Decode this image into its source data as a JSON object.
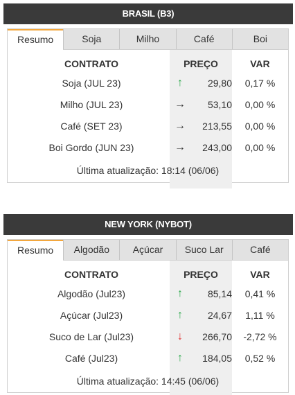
{
  "brasil": {
    "title": "BRASIL (B3)",
    "tabs": [
      "Resumo",
      "Soja",
      "Milho",
      "Café",
      "Boi"
    ],
    "headers": {
      "contract": "CONTRATO",
      "price": "PREÇO",
      "var": "VAR"
    },
    "rows": [
      {
        "contract": "Soja (JUL 23)",
        "arrow": "↑",
        "trend": "up",
        "price": "29,80",
        "var": "0,17 %"
      },
      {
        "contract": "Milho (JUL 23)",
        "arrow": "→",
        "trend": "flat",
        "price": "53,10",
        "var": "0,00 %"
      },
      {
        "contract": "Café (SET 23)",
        "arrow": "→",
        "trend": "flat",
        "price": "213,55",
        "var": "0,00 %"
      },
      {
        "contract": "Boi Gordo (JUN 23)",
        "arrow": "→",
        "trend": "flat",
        "price": "243,00",
        "var": "0,00 %"
      }
    ],
    "updated": "Última atualização: 18:14 (06/06)"
  },
  "newyork": {
    "title": "NEW YORK (NYBOT)",
    "tabs": [
      "Resumo",
      "Algodão",
      "Açúcar",
      "Suco Lar",
      "Café"
    ],
    "headers": {
      "contract": "CONTRATO",
      "price": "PREÇO",
      "var": "VAR"
    },
    "rows": [
      {
        "contract": "Algodão (Jul23)",
        "arrow": "↑",
        "trend": "up",
        "price": "85,14",
        "var": "0,41 %"
      },
      {
        "contract": "Açúcar (Jul23)",
        "arrow": "↑",
        "trend": "up",
        "price": "24,67",
        "var": "1,11 %"
      },
      {
        "contract": "Suco de Lar (Jul23)",
        "arrow": "↓",
        "trend": "down",
        "price": "266,70",
        "var": "-2,72 %"
      },
      {
        "contract": "Café (Jul23)",
        "arrow": "↑",
        "trend": "up",
        "price": "184,05",
        "var": "0,52 %"
      }
    ],
    "updated": "Última atualização: 14:45 (06/06)"
  }
}
